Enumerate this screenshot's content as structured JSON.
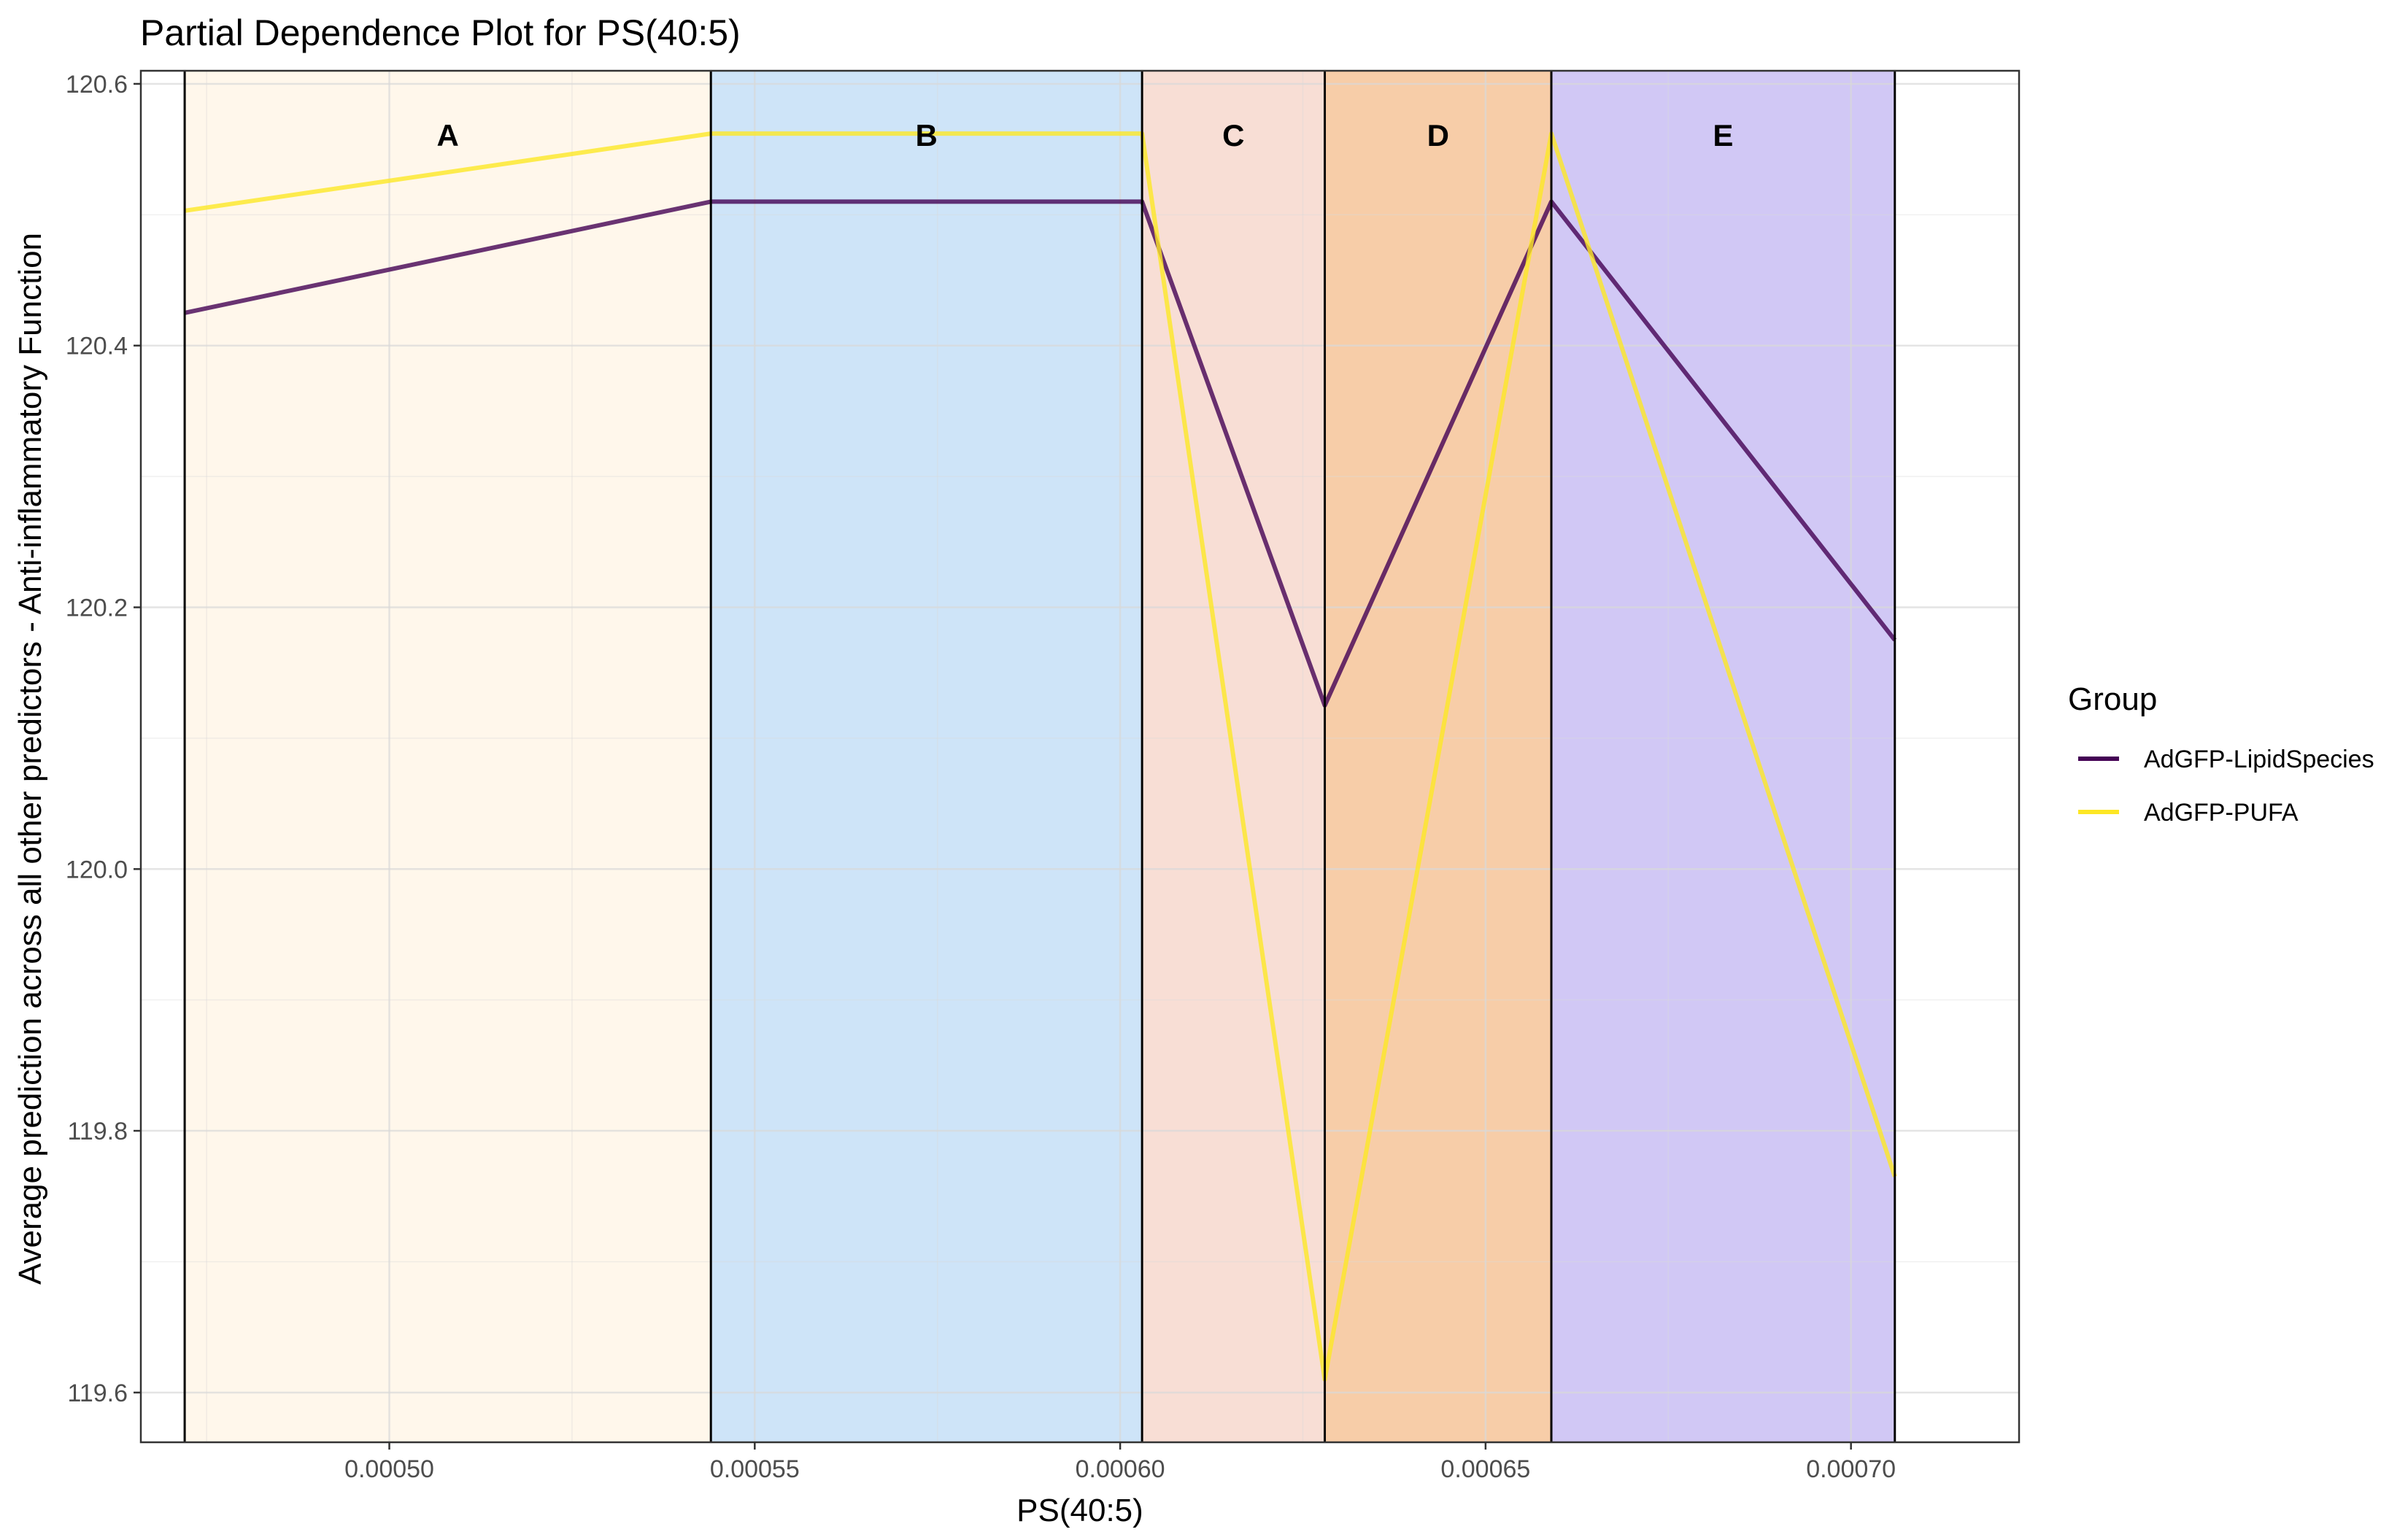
{
  "chart_data": {
    "type": "line",
    "title": "Partial Dependence Plot for PS(40:5)",
    "xlabel": "PS(40:5)",
    "ylabel": "Average prediction across all other predictors - Anti-inflammatory Function",
    "xlim": [
      0.000466,
      0.000723
    ],
    "ylim": [
      119.562,
      120.61
    ],
    "x_ticks": [
      0.0005,
      0.00055,
      0.0006,
      0.00065,
      0.0007
    ],
    "x_tick_labels": [
      "0.00050",
      "0.00055",
      "0.00060",
      "0.00065",
      "0.00070"
    ],
    "y_ticks": [
      119.6,
      119.8,
      120.0,
      120.2,
      120.4,
      120.6
    ],
    "y_tick_labels": [
      "119.6",
      "119.8",
      "120.0",
      "120.2",
      "120.4",
      "120.6"
    ],
    "grid": true,
    "legend": {
      "title": "Group",
      "placement": "right"
    },
    "regions": [
      {
        "label": "A",
        "x_start": 0.000472,
        "x_end": 0.000544,
        "color": "#FFF2E0"
      },
      {
        "label": "B",
        "x_start": 0.000544,
        "x_end": 0.000603,
        "color": "#B3D5F5"
      },
      {
        "label": "C",
        "x_start": 0.000603,
        "x_end": 0.000628,
        "color": "#F5CDBF"
      },
      {
        "label": "D",
        "x_start": 0.000628,
        "x_end": 0.000659,
        "color": "#F2B27A"
      },
      {
        "label": "E",
        "x_start": 0.000659,
        "x_end": 0.000706,
        "color": "#B9ABF0"
      }
    ],
    "series": [
      {
        "name": "AdGFP-LipidSpecies",
        "color": "#440154",
        "x": [
          0.000472,
          0.000544,
          0.000603,
          0.000628,
          0.000659,
          0.000706
        ],
        "y": [
          120.425,
          120.51,
          120.51,
          120.125,
          120.51,
          120.175
        ]
      },
      {
        "name": "AdGFP-PUFA",
        "color": "#FDE725",
        "x": [
          0.000472,
          0.000544,
          0.000603,
          0.000628,
          0.000659,
          0.000706
        ],
        "y": [
          120.503,
          120.562,
          120.562,
          119.61,
          120.562,
          119.765
        ]
      }
    ]
  }
}
